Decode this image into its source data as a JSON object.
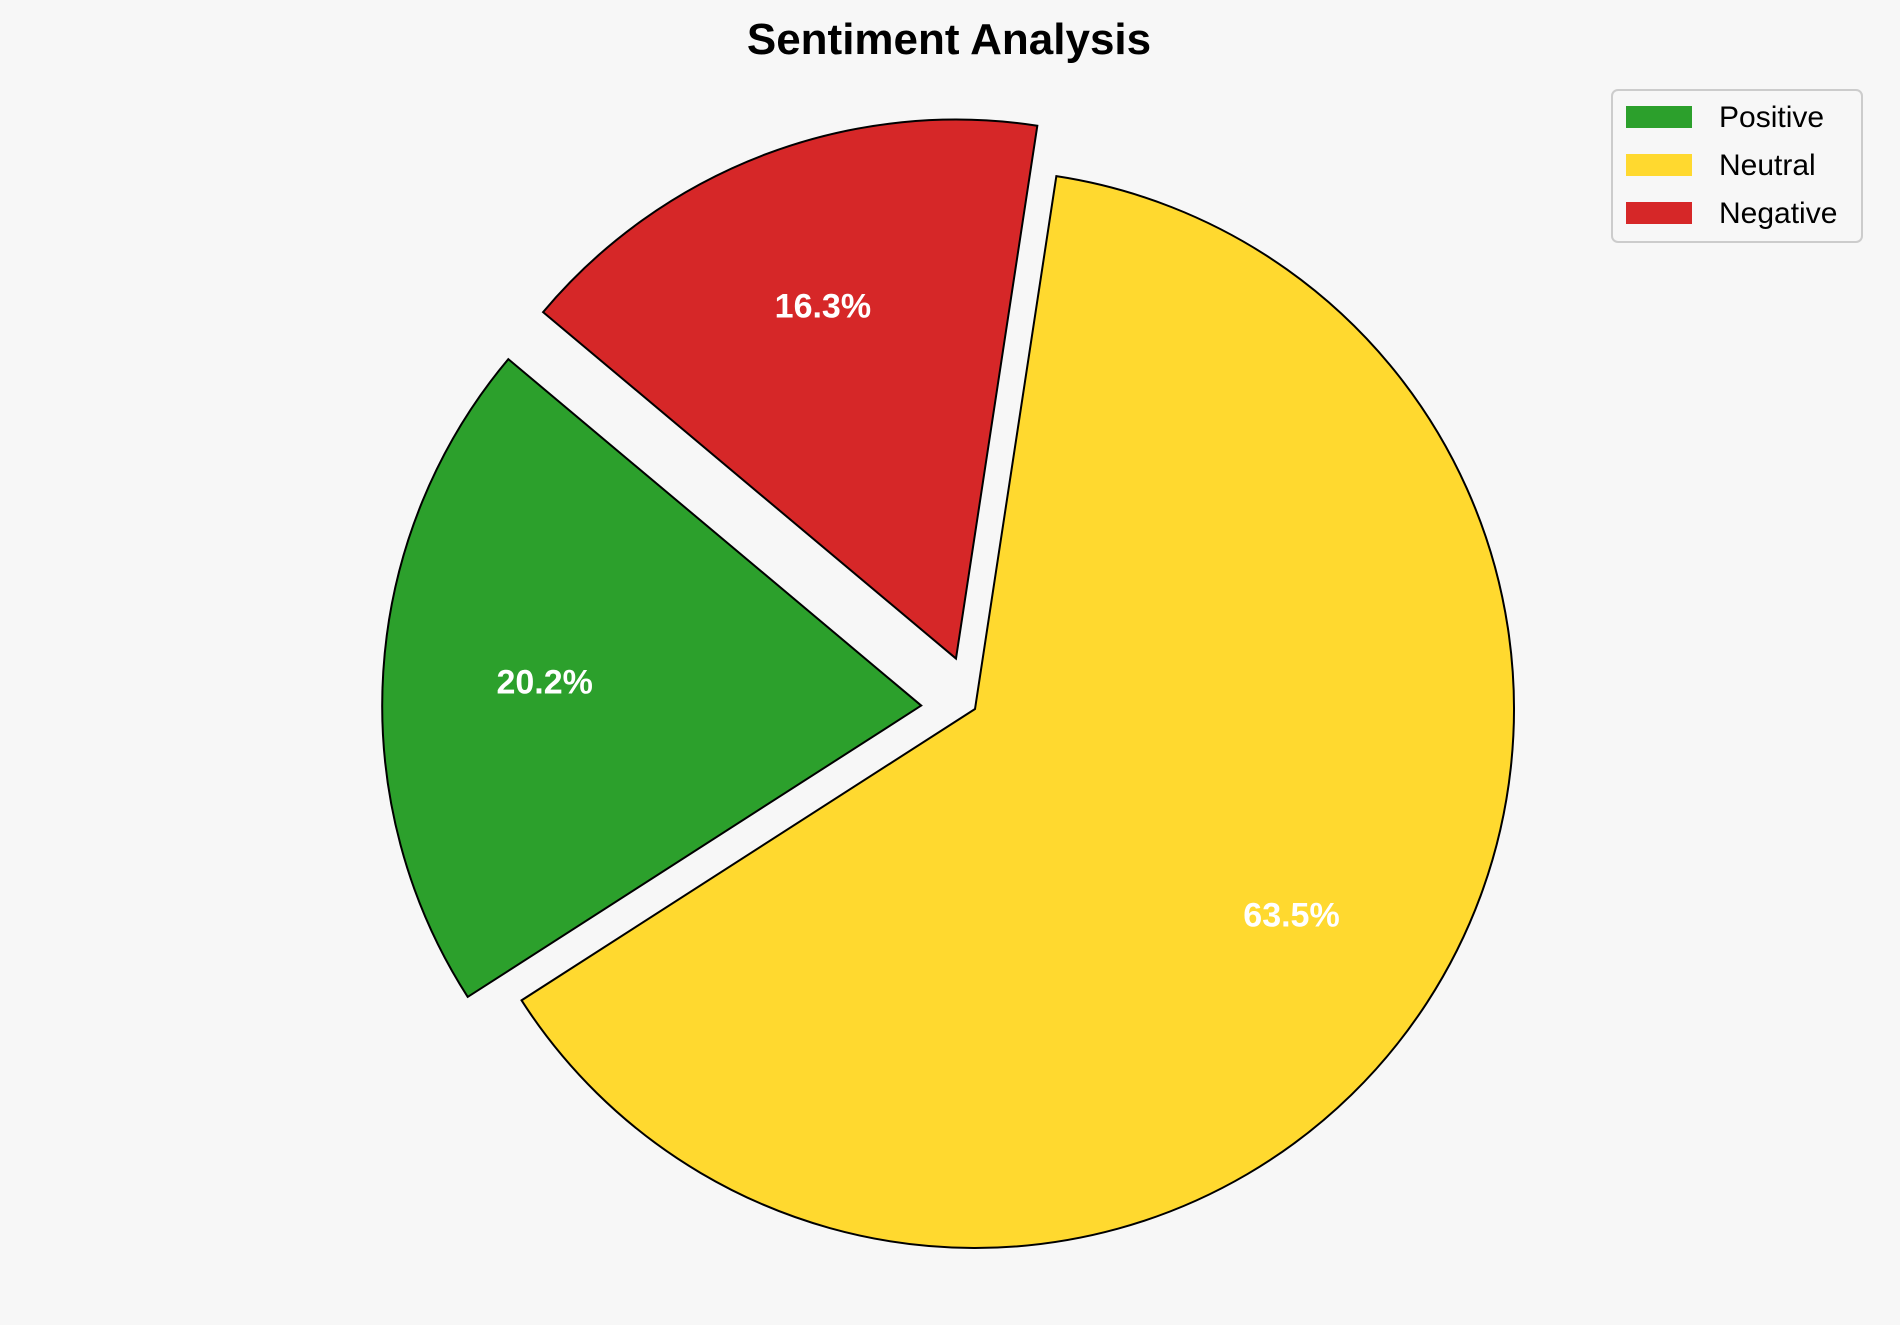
{
  "chart_data": {
    "type": "pie",
    "title": "Sentiment Analysis",
    "labels": [
      "Positive",
      "Neutral",
      "Negative"
    ],
    "values": [
      20.2,
      63.5,
      16.3
    ],
    "pct_labels": [
      "20.2%",
      "63.5%",
      "16.3%"
    ],
    "colors": [
      "#2ca02c",
      "#ffd92f",
      "#d62728"
    ],
    "explode": [
      0.1,
      0,
      0.1
    ],
    "start_angle_deg": 140,
    "direction": "counterclockwise",
    "legend_placement": "top-right",
    "edge_color": "#000000"
  }
}
